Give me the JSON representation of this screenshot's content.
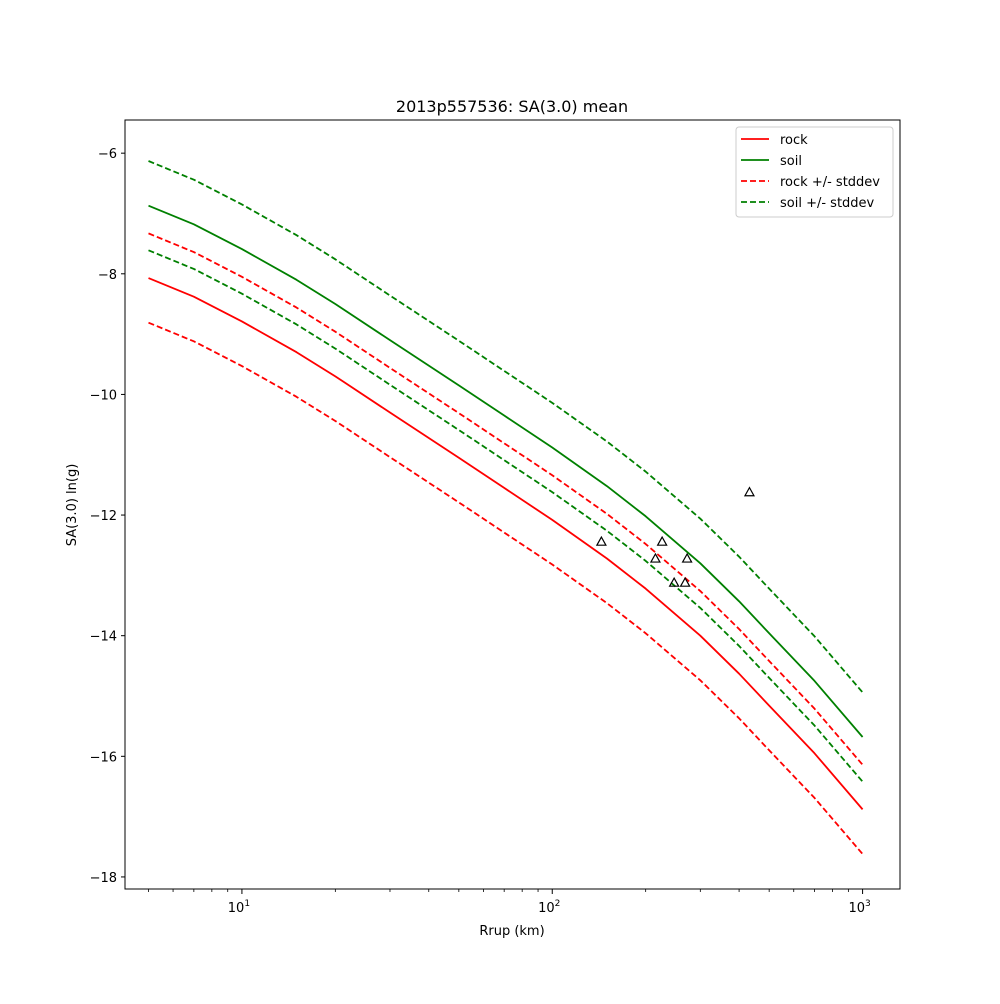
{
  "chart_data": {
    "type": "line",
    "title": "2013p557536: SA(3.0) mean",
    "xlabel": "Rrup (km)",
    "ylabel": "SA(3.0) ln(g)",
    "xscale": "log",
    "xlim": [
      4.2,
      1320
    ],
    "ylim": [
      -18.2,
      -5.45
    ],
    "grid": false,
    "legend_position": "top-right",
    "x_major_ticks": [
      {
        "value": 10,
        "base": "10",
        "exp": "1"
      },
      {
        "value": 100,
        "base": "10",
        "exp": "2"
      },
      {
        "value": 1000,
        "base": "10",
        "exp": "3"
      }
    ],
    "y_ticks": [
      {
        "value": -6,
        "label": "−6"
      },
      {
        "value": -8,
        "label": "−8"
      },
      {
        "value": -10,
        "label": "−10"
      },
      {
        "value": -12,
        "label": "−12"
      },
      {
        "value": -14,
        "label": "−14"
      },
      {
        "value": -16,
        "label": "−16"
      },
      {
        "value": -18,
        "label": "−18"
      }
    ],
    "x": [
      5,
      7,
      10,
      15,
      20,
      30,
      50,
      70,
      100,
      150,
      200,
      300,
      400,
      500,
      700,
      1000
    ],
    "series": [
      {
        "name": "rock",
        "color": "#ff0000",
        "style": "solid",
        "values": [
          -8.07,
          -8.38,
          -8.79,
          -9.3,
          -9.7,
          -10.3,
          -11.05,
          -11.55,
          -12.08,
          -12.72,
          -13.22,
          -14.0,
          -14.63,
          -15.16,
          -15.95,
          -16.88
        ]
      },
      {
        "name": "soil",
        "color": "#008000",
        "style": "solid",
        "values": [
          -6.87,
          -7.18,
          -7.59,
          -8.1,
          -8.5,
          -9.1,
          -9.85,
          -10.35,
          -10.88,
          -11.52,
          -12.02,
          -12.8,
          -13.43,
          -13.96,
          -14.75,
          -15.68
        ]
      },
      {
        "name": "rock +/- stddev",
        "color": "#ff0000",
        "style": "dashed",
        "values": [
          -7.33,
          -7.64,
          -8.05,
          -8.56,
          -8.96,
          -9.56,
          -10.31,
          -10.81,
          -11.34,
          -11.98,
          -12.48,
          -13.26,
          -13.89,
          -14.42,
          -15.21,
          -16.14
        ]
      },
      {
        "name": "",
        "color": "#ff0000",
        "style": "dashed",
        "values": [
          -8.81,
          -9.12,
          -9.53,
          -10.04,
          -10.44,
          -11.04,
          -11.79,
          -12.29,
          -12.82,
          -13.46,
          -13.96,
          -14.74,
          -15.37,
          -15.9,
          -16.69,
          -17.62
        ]
      },
      {
        "name": "soil +/- stddev",
        "color": "#008000",
        "style": "dashed",
        "values": [
          -6.13,
          -6.44,
          -6.85,
          -7.36,
          -7.76,
          -8.36,
          -9.11,
          -9.61,
          -10.14,
          -10.78,
          -11.28,
          -12.06,
          -12.69,
          -13.22,
          -14.01,
          -14.94
        ]
      },
      {
        "name": "",
        "color": "#008000",
        "style": "dashed",
        "values": [
          -7.61,
          -7.92,
          -8.33,
          -8.84,
          -9.24,
          -9.84,
          -10.59,
          -11.09,
          -11.62,
          -12.26,
          -12.76,
          -13.54,
          -14.17,
          -14.7,
          -15.49,
          -16.42
        ]
      }
    ],
    "observations": {
      "marker": "triangle-open",
      "color": "#000000",
      "points": [
        {
          "x": 144,
          "y": -12.44
        },
        {
          "x": 215,
          "y": -12.72
        },
        {
          "x": 226,
          "y": -12.44
        },
        {
          "x": 247,
          "y": -13.12
        },
        {
          "x": 268,
          "y": -13.12
        },
        {
          "x": 272,
          "y": -12.72
        },
        {
          "x": 432,
          "y": -11.62
        }
      ]
    },
    "legend": [
      {
        "label": "rock",
        "color": "#ff0000",
        "style": "solid"
      },
      {
        "label": "soil",
        "color": "#008000",
        "style": "solid"
      },
      {
        "label": "rock +/- stddev",
        "color": "#ff0000",
        "style": "dashed"
      },
      {
        "label": "soil +/- stddev",
        "color": "#008000",
        "style": "dashed"
      }
    ]
  }
}
